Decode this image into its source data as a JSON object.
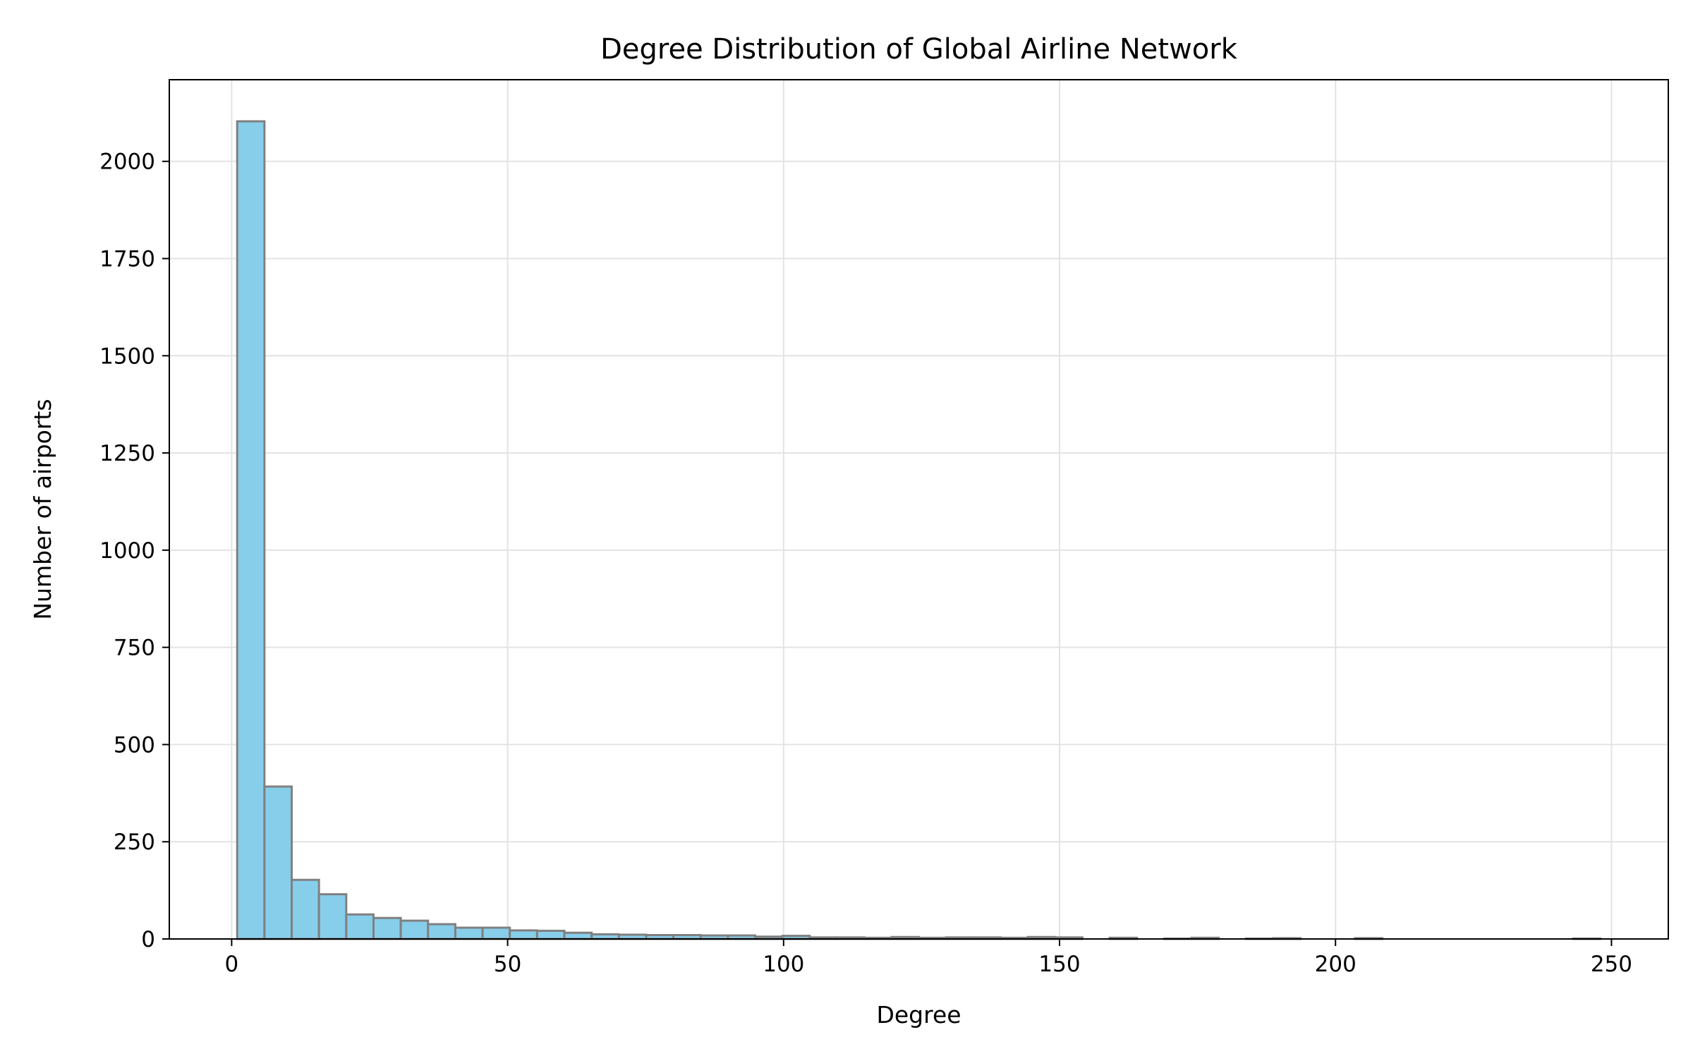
{
  "chart_data": {
    "type": "bar",
    "title": "Degree Distribution of Global Airline Network",
    "xlabel": "Degree",
    "ylabel": "Number of airports",
    "xlim": [
      -11.3,
      260.3
    ],
    "ylim": [
      0,
      2210
    ],
    "xticks": [
      0,
      50,
      100,
      150,
      200,
      250
    ],
    "yticks": [
      0,
      250,
      500,
      750,
      1000,
      1250,
      1500,
      1750,
      2000
    ],
    "grid": true,
    "bar_color": "#87CEEB",
    "edge_color": "#808080",
    "bin_edges": [
      1,
      5.94,
      10.88,
      15.82,
      20.76,
      25.7,
      30.64,
      35.58,
      40.52,
      45.46,
      50.4,
      55.34,
      60.28,
      65.22,
      70.16,
      75.1,
      80.04,
      84.98,
      89.92,
      94.86,
      99.8,
      104.74,
      109.68,
      114.62,
      119.56,
      124.5,
      129.44,
      134.38,
      139.32,
      144.26,
      149.2,
      154.14,
      159.08,
      164.02,
      168.96,
      173.9,
      178.84,
      183.78,
      188.72,
      193.66,
      198.6,
      203.54,
      208.48,
      213.42,
      218.36,
      223.3,
      228.24,
      233.18,
      238.12,
      243.06,
      248
    ],
    "counts": [
      2103,
      392,
      152,
      115,
      63,
      54,
      47,
      38,
      29,
      29,
      22,
      21,
      16,
      12,
      11,
      10,
      10,
      9,
      9,
      6,
      8,
      4,
      4,
      3,
      5,
      3,
      4,
      4,
      3,
      5,
      4,
      0,
      3,
      0,
      1,
      3,
      0,
      1,
      2,
      0,
      0,
      2,
      0,
      0,
      0,
      0,
      0,
      0,
      0,
      1
    ]
  }
}
